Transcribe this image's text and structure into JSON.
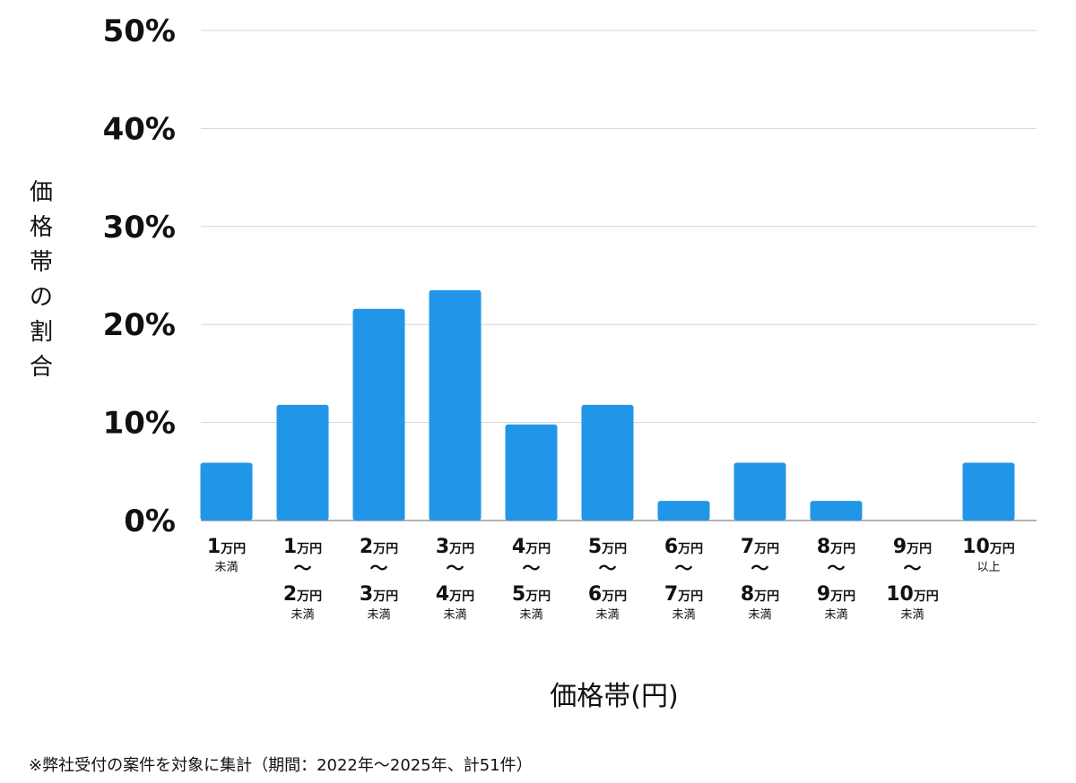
{
  "chart_data": {
    "type": "bar",
    "ylabel": "価格帯の割合",
    "xlabel": "価格帯(円)",
    "ylim": [
      0,
      50
    ],
    "yticks": [
      0,
      10,
      20,
      30,
      40,
      50
    ],
    "ytick_labels": [
      "0%",
      "10%",
      "20%",
      "30%",
      "40%",
      "50%"
    ],
    "grid": true,
    "bar_color": "#2196e8",
    "categories": [
      "1万円未満",
      "1万円〜2万円未満",
      "2万円〜3万円未満",
      "3万円〜4万円未満",
      "4万円〜5万円未満",
      "5万円〜6万円未満",
      "6万円〜7万円未満",
      "7万円〜8万円未満",
      "8万円〜9万円未満",
      "9万円〜10万円未満",
      "10万円以上"
    ],
    "category_labels": [
      {
        "from": "1",
        "unit": "万円",
        "to": "",
        "to_unit": "",
        "suffix": "未満",
        "tilde": ""
      },
      {
        "from": "1",
        "unit": "万円",
        "to": "2",
        "to_unit": "万円",
        "suffix": "未満",
        "tilde": "〜"
      },
      {
        "from": "2",
        "unit": "万円",
        "to": "3",
        "to_unit": "万円",
        "suffix": "未満",
        "tilde": "〜"
      },
      {
        "from": "3",
        "unit": "万円",
        "to": "4",
        "to_unit": "万円",
        "suffix": "未満",
        "tilde": "〜"
      },
      {
        "from": "4",
        "unit": "万円",
        "to": "5",
        "to_unit": "万円",
        "suffix": "未満",
        "tilde": "〜"
      },
      {
        "from": "5",
        "unit": "万円",
        "to": "6",
        "to_unit": "万円",
        "suffix": "未満",
        "tilde": "〜"
      },
      {
        "from": "6",
        "unit": "万円",
        "to": "7",
        "to_unit": "万円",
        "suffix": "未満",
        "tilde": "〜"
      },
      {
        "from": "7",
        "unit": "万円",
        "to": "8",
        "to_unit": "万円",
        "suffix": "未満",
        "tilde": "〜"
      },
      {
        "from": "8",
        "unit": "万円",
        "to": "9",
        "to_unit": "万円",
        "suffix": "未満",
        "tilde": "〜"
      },
      {
        "from": "9",
        "unit": "万円",
        "to": "10",
        "to_unit": "万円",
        "suffix": "未満",
        "tilde": "〜"
      },
      {
        "from": "10",
        "unit": "万円",
        "to": "",
        "to_unit": "",
        "suffix": "以上",
        "tilde": ""
      }
    ],
    "values": [
      5.9,
      11.8,
      21.6,
      23.5,
      9.8,
      11.8,
      2.0,
      5.9,
      2.0,
      0,
      5.9
    ]
  },
  "footnote": "※弊社受付の案件を対象に集計（期間：2022年〜2025年、計51件）"
}
